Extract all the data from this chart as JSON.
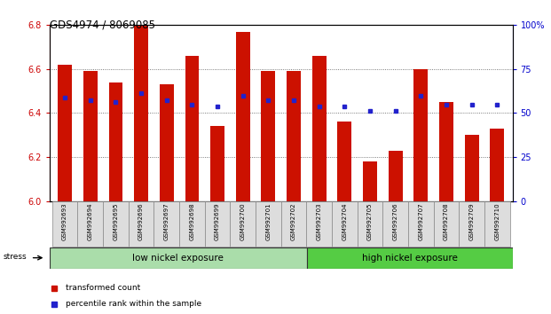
{
  "title": "GDS4974 / 8069085",
  "samples": [
    "GSM992693",
    "GSM992694",
    "GSM992695",
    "GSM992696",
    "GSM992697",
    "GSM992698",
    "GSM992699",
    "GSM992700",
    "GSM992701",
    "GSM992702",
    "GSM992703",
    "GSM992704",
    "GSM992705",
    "GSM992706",
    "GSM992707",
    "GSM992708",
    "GSM992709",
    "GSM992710"
  ],
  "red_values": [
    6.62,
    6.59,
    6.54,
    6.8,
    6.53,
    6.66,
    6.34,
    6.77,
    6.59,
    6.59,
    6.66,
    6.36,
    6.18,
    6.23,
    6.6,
    6.45,
    6.3,
    6.33
  ],
  "blue_values": [
    6.47,
    6.46,
    6.45,
    6.49,
    6.46,
    6.44,
    6.43,
    6.48,
    6.46,
    6.46,
    6.43,
    6.43,
    6.41,
    6.41,
    6.48,
    6.44,
    6.44,
    6.44
  ],
  "ylim_left": [
    6.0,
    6.8
  ],
  "ylim_right": [
    0,
    100
  ],
  "yticks_left": [
    6.0,
    6.2,
    6.4,
    6.6,
    6.8
  ],
  "yticks_right": [
    0,
    25,
    50,
    75,
    100
  ],
  "group1_label": "low nickel exposure",
  "group2_label": "high nickel exposure",
  "group1_count": 10,
  "group2_count": 8,
  "stress_label": "stress",
  "legend1": "transformed count",
  "legend2": "percentile rank within the sample",
  "bar_color": "#cc1100",
  "dot_color": "#2222cc",
  "group1_color": "#aaddaa",
  "group2_color": "#55cc44",
  "bar_width": 0.55,
  "base_value": 6.0,
  "bg_color": "#ffffff",
  "tick_label_color_left": "#cc0000",
  "tick_label_color_right": "#0000cc"
}
